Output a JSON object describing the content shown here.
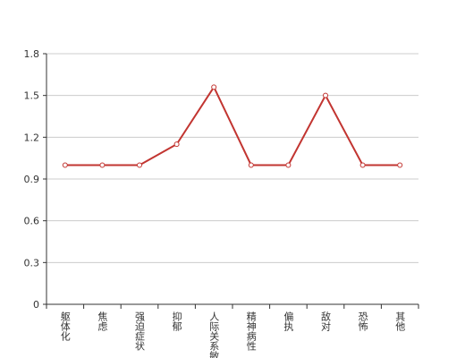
{
  "chart_data": {
    "type": "line",
    "categories": [
      "躯体化",
      "焦虑",
      "强迫症状",
      "抑郁",
      "人际关系敏感",
      "精神病性",
      "偏执",
      "敌对",
      "恐怖",
      "其他"
    ],
    "series": [
      {
        "name": null,
        "color": "#c23531",
        "values": [
          1,
          1,
          1,
          1.15,
          1.56,
          1,
          1,
          1.5,
          1,
          1
        ]
      }
    ],
    "ylim": [
      0,
      1.8
    ],
    "yticks": [
      0,
      0.3,
      0.6,
      0.9,
      1.2,
      1.5,
      1.8
    ],
    "grid": true
  }
}
